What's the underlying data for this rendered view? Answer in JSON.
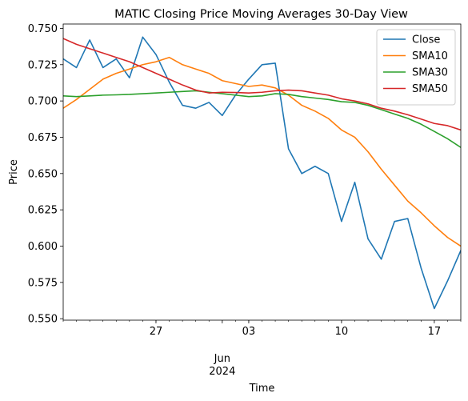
{
  "chart_data": {
    "type": "line",
    "title": "MATIC Closing Price Moving Averages 30-Day View",
    "xlabel": "Time",
    "ylabel": "Price",
    "x": [
      "2024-05-20",
      "2024-05-21",
      "2024-05-22",
      "2024-05-23",
      "2024-05-24",
      "2024-05-25",
      "2024-05-26",
      "2024-05-27",
      "2024-05-28",
      "2024-05-29",
      "2024-05-30",
      "2024-05-31",
      "2024-06-01",
      "2024-06-02",
      "2024-06-03",
      "2024-06-04",
      "2024-06-05",
      "2024-06-06",
      "2024-06-07",
      "2024-06-08",
      "2024-06-09",
      "2024-06-10",
      "2024-06-11",
      "2024-06-12",
      "2024-06-13",
      "2024-06-14",
      "2024-06-15",
      "2024-06-16",
      "2024-06-17",
      "2024-06-18",
      "2024-06-19"
    ],
    "xlim": [
      "2024-05-20",
      "2024-06-19"
    ],
    "ylim": [
      0.549,
      0.753
    ],
    "x_ticks": [
      {
        "date": "2024-05-27",
        "label": "27"
      },
      {
        "date": "2024-06-03",
        "label": "03"
      },
      {
        "date": "2024-06-10",
        "label": "10"
      },
      {
        "date": "2024-06-17",
        "label": "17"
      }
    ],
    "x_secondary_label": [
      "Jun",
      "2024"
    ],
    "x_secondary_at": "2024-06-01",
    "y_ticks": [
      0.55,
      0.575,
      0.6,
      0.625,
      0.65,
      0.675,
      0.7,
      0.725,
      0.75
    ],
    "y_tick_labels": [
      "0.550",
      "0.575",
      "0.600",
      "0.625",
      "0.650",
      "0.675",
      "0.700",
      "0.725",
      "0.750"
    ],
    "grid": false,
    "legend_position": "top-right",
    "series": [
      {
        "name": "Close",
        "color": "#1f77b4",
        "values": [
          0.729,
          0.723,
          0.742,
          0.723,
          0.729,
          0.716,
          0.744,
          0.732,
          0.713,
          0.697,
          0.695,
          0.699,
          0.69,
          0.704,
          0.715,
          0.725,
          0.726,
          0.667,
          0.65,
          0.655,
          0.65,
          0.617,
          0.644,
          0.605,
          0.591,
          0.617,
          0.619,
          0.585,
          0.557,
          0.576,
          0.597
        ]
      },
      {
        "name": "SMA10",
        "color": "#ff7f0e",
        "values": [
          0.695,
          0.701,
          0.708,
          0.715,
          0.719,
          0.722,
          0.725,
          0.727,
          0.73,
          0.725,
          0.722,
          0.719,
          0.714,
          0.712,
          0.71,
          0.711,
          0.709,
          0.704,
          0.697,
          0.693,
          0.688,
          0.68,
          0.675,
          0.665,
          0.653,
          0.642,
          0.631,
          0.623,
          0.614,
          0.606,
          0.6
        ]
      },
      {
        "name": "SMA30",
        "color": "#2ca02c",
        "values": [
          0.7035,
          0.703,
          0.7035,
          0.704,
          0.7042,
          0.7045,
          0.705,
          0.7055,
          0.706,
          0.7065,
          0.707,
          0.706,
          0.705,
          0.704,
          0.703,
          0.7035,
          0.705,
          0.7045,
          0.703,
          0.702,
          0.701,
          0.6995,
          0.699,
          0.697,
          0.694,
          0.691,
          0.688,
          0.684,
          0.679,
          0.674,
          0.668
        ]
      },
      {
        "name": "SMA50",
        "color": "#d62728",
        "values": [
          0.743,
          0.739,
          0.736,
          0.733,
          0.73,
          0.727,
          0.723,
          0.719,
          0.715,
          0.711,
          0.7075,
          0.7055,
          0.706,
          0.7058,
          0.7055,
          0.706,
          0.707,
          0.7075,
          0.707,
          0.7055,
          0.704,
          0.7015,
          0.7,
          0.698,
          0.695,
          0.693,
          0.6905,
          0.6875,
          0.6845,
          0.683,
          0.68
        ]
      }
    ]
  }
}
